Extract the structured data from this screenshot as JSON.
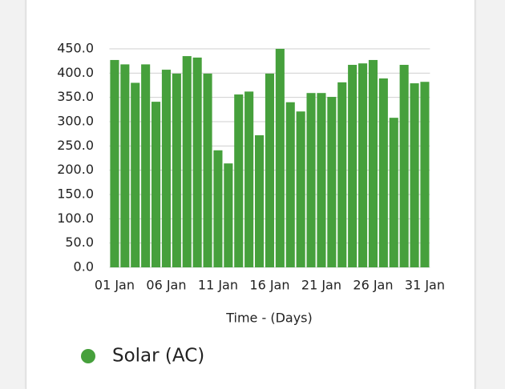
{
  "chart_data": {
    "type": "bar",
    "categories": [
      "01 Jan",
      null,
      null,
      null,
      null,
      "06 Jan",
      null,
      null,
      null,
      null,
      "11 Jan",
      null,
      null,
      null,
      null,
      "16 Jan",
      null,
      null,
      null,
      null,
      "21 Jan",
      null,
      null,
      null,
      null,
      "26 Jan",
      null,
      null,
      null,
      null,
      "31 Jan"
    ],
    "series": [
      {
        "name": "Solar (AC)",
        "color": "#46a03c",
        "values": [
          427,
          418,
          380,
          418,
          341,
          407,
          399,
          435,
          432,
          399,
          241,
          214,
          356,
          362,
          272,
          399,
          450,
          340,
          321,
          359,
          359,
          351,
          381,
          417,
          420,
          427,
          389,
          308,
          417,
          379,
          382
        ]
      }
    ],
    "ylim": [
      0,
      450
    ],
    "yticks": [
      {
        "value": 0,
        "label": "0.0"
      },
      {
        "value": 50,
        "label": "50.0"
      },
      {
        "value": 100,
        "label": "100.0"
      },
      {
        "value": 150,
        "label": "150.0"
      },
      {
        "value": 200,
        "label": "200.0"
      },
      {
        "value": 250,
        "label": "250.0"
      },
      {
        "value": 300,
        "label": "300.0"
      },
      {
        "value": 350,
        "label": "350.0"
      },
      {
        "value": 400,
        "label": "400.0"
      },
      {
        "value": 450,
        "label": "450.0"
      }
    ],
    "x_label": "Time - (Days)",
    "grid": true,
    "legend": "bottom-left"
  }
}
